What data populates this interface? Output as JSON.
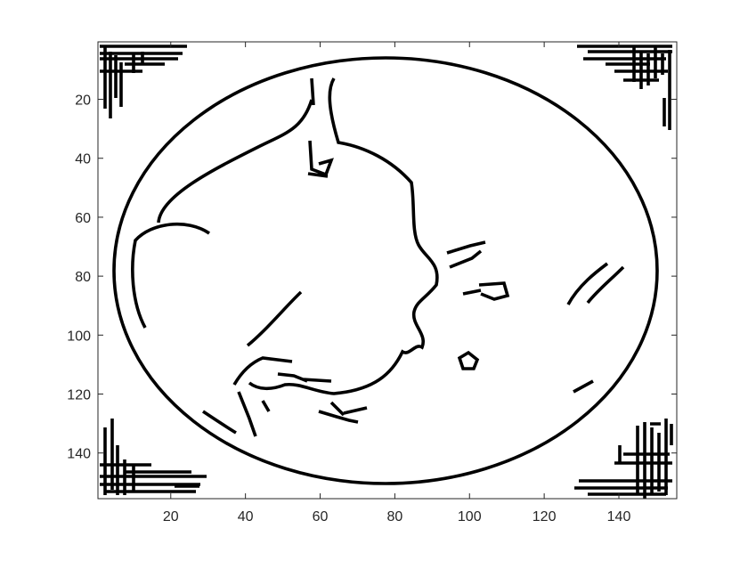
{
  "image": {
    "kind": "binary edge map rendered in a plot frame",
    "background": "#ffffff",
    "edge_color": "#000000",
    "frame_color": "#262626"
  },
  "axes": {
    "x_ticks": [
      20,
      40,
      60,
      80,
      100,
      120,
      140
    ],
    "y_ticks": [
      20,
      40,
      60,
      80,
      100,
      120,
      140
    ],
    "x_range": [
      0.5,
      155.5
    ],
    "y_range": [
      0.5,
      155.5
    ],
    "y_reversed": true
  }
}
